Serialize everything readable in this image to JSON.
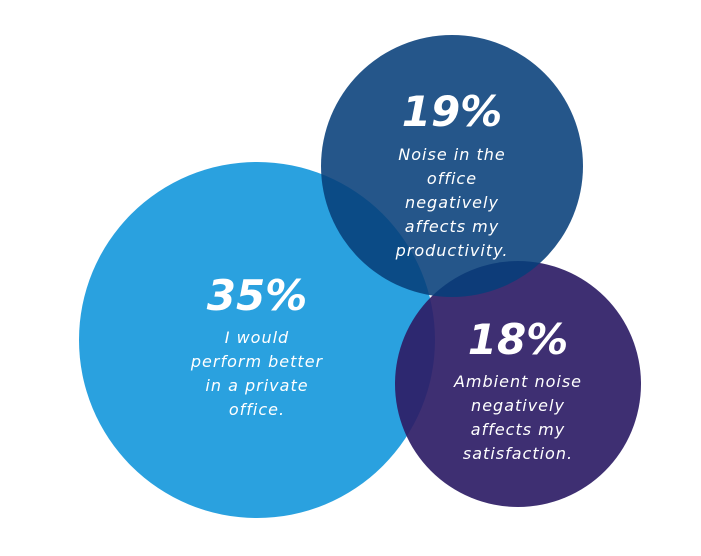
{
  "chart_data": {
    "type": "bubble",
    "series": [
      {
        "value": 35,
        "value_label": "35%",
        "label_lines": [
          "I would",
          "perform better",
          "in a private",
          "office."
        ],
        "color": "#2aa1df"
      },
      {
        "value": 19,
        "value_label": "19%",
        "label_lines": [
          "Noise in the",
          "office",
          "negatively",
          "affects my",
          "productivity."
        ],
        "color": "#073f7a"
      },
      {
        "value": 18,
        "value_label": "18%",
        "label_lines": [
          "Ambient noise",
          "negatively",
          "affects my",
          "satisfaction."
        ],
        "color": "#2e1d66"
      }
    ]
  }
}
